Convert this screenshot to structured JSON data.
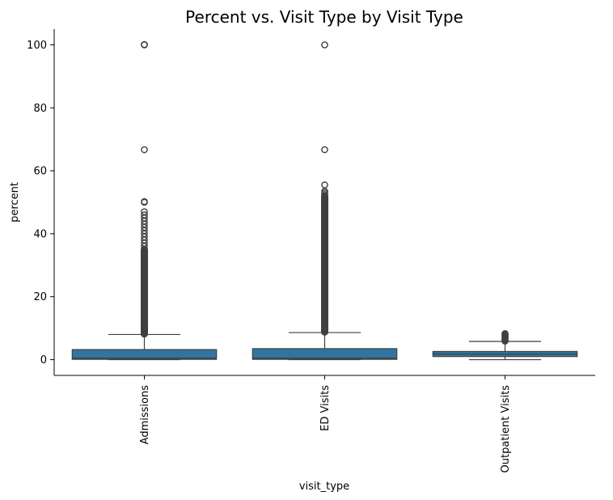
{
  "chart_data": {
    "type": "box",
    "title": "Percent vs. Visit Type by Visit Type",
    "xlabel": "visit_type",
    "ylabel": "percent",
    "ylim": [
      -5,
      105
    ],
    "yticks": [
      0,
      20,
      40,
      60,
      80,
      100
    ],
    "categories": [
      "Admissions",
      "ED Visits",
      "Outpatient Visits"
    ],
    "box_color": "#3274a1",
    "line_color": "#3f3f3f",
    "grid": false,
    "boxes": [
      {
        "category": "Admissions",
        "min": 0,
        "q1": 0.1,
        "median": 0.5,
        "q3": 3.2,
        "whisker_high": 8.0,
        "outliers_dense": [
          8.2,
          35.0
        ],
        "outliers": [
          36,
          37,
          38,
          39,
          40,
          41,
          42,
          43,
          44,
          45,
          46,
          47,
          50,
          50.2,
          66.7,
          100,
          100.1
        ]
      },
      {
        "category": "ED Visits",
        "min": 0,
        "q1": 0.1,
        "median": 0.5,
        "q3": 3.5,
        "whisker_high": 8.6,
        "outliers_dense": [
          8.8,
          52.0
        ],
        "outliers": [
          52.5,
          53,
          53.5,
          55.5,
          66.7,
          100
        ]
      },
      {
        "category": "Outpatient Visits",
        "min": 0,
        "q1": 1.0,
        "median": 1.8,
        "q3": 2.6,
        "whisker_high": 5.8,
        "outliers_dense": [],
        "outliers": [
          5.9,
          6.2,
          6.5,
          6.8,
          7.1,
          7.4,
          7.7,
          8.0,
          8.3
        ]
      }
    ]
  }
}
